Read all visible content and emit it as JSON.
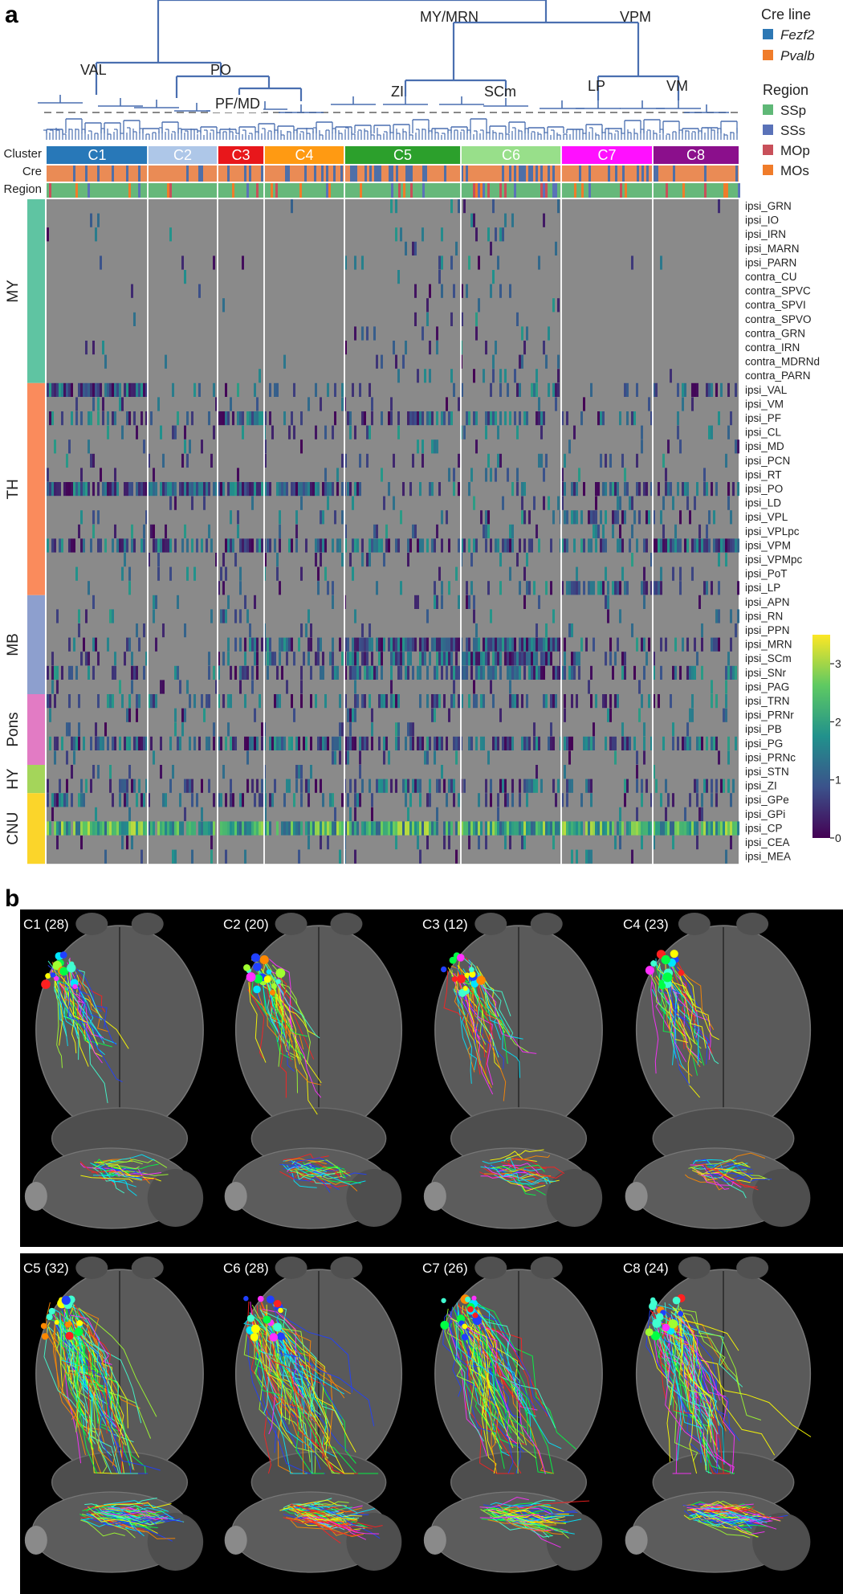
{
  "panel_a": {
    "letter": "a",
    "dendrogram_labels": [
      "VAL",
      "PO",
      "PF/MD",
      "MY/MRN",
      "VPM",
      "ZI",
      "SCm",
      "LP",
      "VM"
    ],
    "row_headers": [
      "Cluster",
      "Cre",
      "Region"
    ],
    "clusters": [
      {
        "label": "C1",
        "color": "#2878b8",
        "text_color": "#ffffff"
      },
      {
        "label": "C2",
        "color": "#aec7e8",
        "text_color": "#ffffff"
      },
      {
        "label": "C3",
        "color": "#e8171b",
        "text_color": "#ffffff"
      },
      {
        "label": "C4",
        "color": "#ff9a12",
        "text_color": "#ffffff"
      },
      {
        "label": "C5",
        "color": "#2ca02c",
        "text_color": "#ffffff"
      },
      {
        "label": "C6",
        "color": "#98df8a",
        "text_color": "#ffffff"
      },
      {
        "label": "C7",
        "color": "#ff10ff",
        "text_color": "#ffffff"
      },
      {
        "label": "C8",
        "color": "#8b0f8c",
        "text_color": "#ffffff"
      }
    ],
    "legend": {
      "cre_title": "Cre line",
      "cre_items": [
        {
          "label": "Fezf2",
          "color": "#2d78b4"
        },
        {
          "label": "Pvalb",
          "color": "#f07c2a"
        }
      ],
      "region_title": "Region",
      "region_items": [
        {
          "label": "SSp",
          "color": "#5fb877"
        },
        {
          "label": "SSs",
          "color": "#5a72b8"
        },
        {
          "label": "MOp",
          "color": "#c8505a"
        },
        {
          "label": "MOs",
          "color": "#f07c2a"
        }
      ]
    },
    "region_groups": [
      {
        "label": "MY",
        "color": "#5fc4a2",
        "count": 13
      },
      {
        "label": "TH",
        "color": "#fa8b5c",
        "count": 15
      },
      {
        "label": "MB",
        "color": "#8d9fce",
        "count": 7
      },
      {
        "label": "Pons",
        "color": "#e27bc4",
        "count": 5
      },
      {
        "label": "HY",
        "color": "#a4d55a",
        "count": 2
      },
      {
        "label": "CNU",
        "color": "#fbd52a",
        "count": 5
      }
    ],
    "row_labels": [
      "ipsi_GRN",
      "ipsi_IO",
      "ipsi_IRN",
      "ipsi_MARN",
      "ipsi_PARN",
      "contra_CU",
      "contra_SPVC",
      "contra_SPVI",
      "contra_SPVO",
      "contra_GRN",
      "contra_IRN",
      "contra_MDRNd",
      "contra_PARN",
      "ipsi_VAL",
      "ipsi_VM",
      "ipsi_PF",
      "ipsi_CL",
      "ipsi_MD",
      "ipsi_PCN",
      "ipsi_RT",
      "ipsi_PO",
      "ipsi_LD",
      "ipsi_VPL",
      "ipsi_VPLpc",
      "ipsi_VPM",
      "ipsi_VPMpc",
      "ipsi_PoT",
      "ipsi_LP",
      "ipsi_APN",
      "ipsi_RN",
      "ipsi_PPN",
      "ipsi_MRN",
      "ipsi_SCm",
      "ipsi_SNr",
      "ipsi_PAG",
      "ipsi_TRN",
      "ipsi_PRNr",
      "ipsi_PB",
      "ipsi_PG",
      "ipsi_PRNc",
      "ipsi_STN",
      "ipsi_ZI",
      "ipsi_GPe",
      "ipsi_GPi",
      "ipsi_CP",
      "ipsi_CEA",
      "ipsi_MEA"
    ],
    "colorbar_ticks": [
      "3",
      "2",
      "1",
      "0"
    ],
    "colorbar_range": [
      0,
      3.5
    ]
  },
  "panel_b": {
    "letter": "b",
    "brain_panels": [
      {
        "title": "C1 (28)",
        "color": "#2878b8"
      },
      {
        "title": "C2 (20)",
        "color": "#aec7e8"
      },
      {
        "title": "C3 (12)",
        "color": "#e8171b"
      },
      {
        "title": "C4 (23)",
        "color": "#ff9a12"
      },
      {
        "title": "C5 (32)",
        "color": "#2ca02c"
      },
      {
        "title": "C6 (28)",
        "color": "#98df8a"
      },
      {
        "title": "C7 (26)",
        "color": "#ff10ff"
      },
      {
        "title": "C8 (24)",
        "color": "#8b0f8c"
      }
    ]
  }
}
